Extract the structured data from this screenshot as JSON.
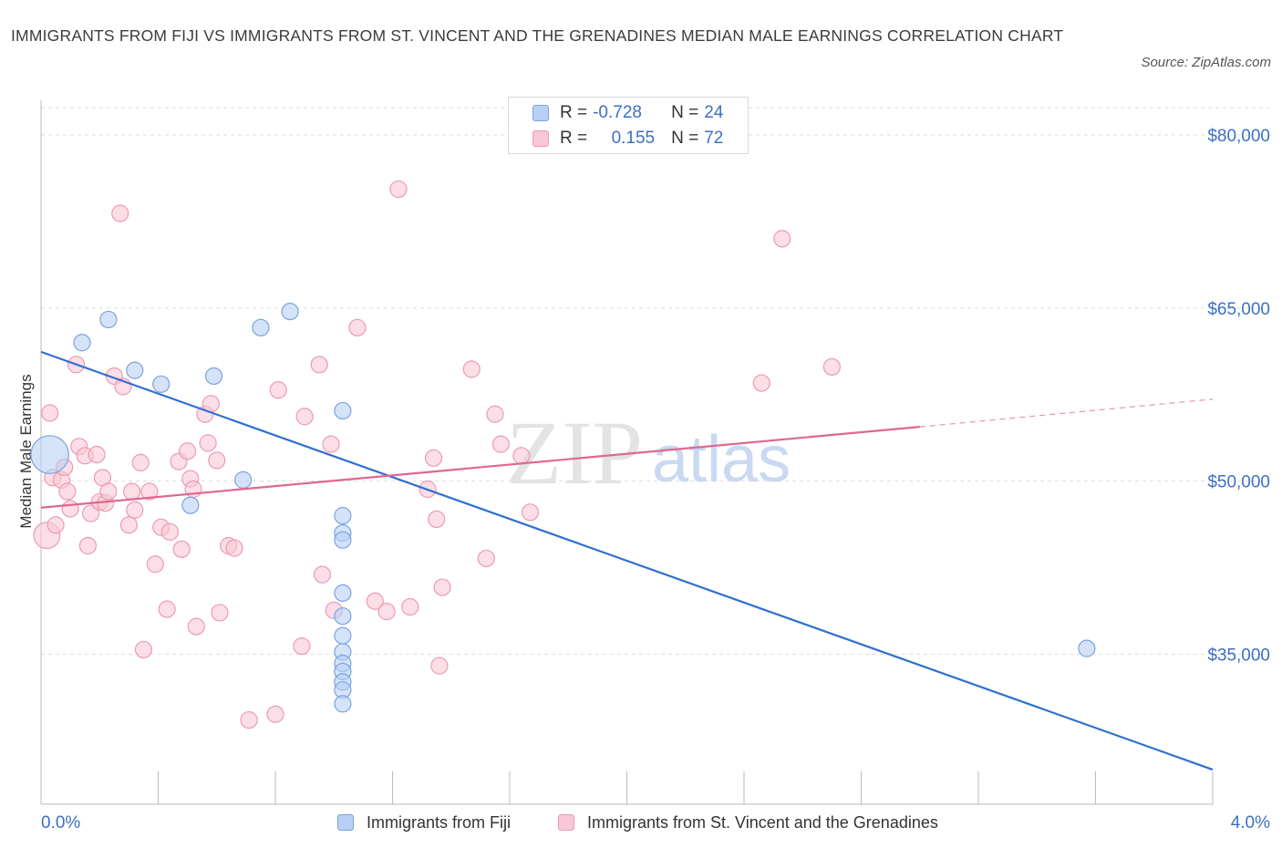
{
  "header": {
    "title": "IMMIGRANTS FROM FIJI VS IMMIGRANTS FROM ST. VINCENT AND THE GRENADINES MEDIAN MALE EARNINGS CORRELATION CHART",
    "source": "Source: ZipAtlas.com"
  },
  "watermark": {
    "zip": "ZIP",
    "atlas": "atlas"
  },
  "stats_legend": {
    "rows": [
      {
        "r_label": "R =",
        "r_value": "-0.728",
        "n_label": "N =",
        "n_value": "24"
      },
      {
        "r_label": "R =",
        "r_value": "0.155",
        "n_label": "N =",
        "n_value": "72"
      }
    ]
  },
  "colors": {
    "fiji_fill": "#b8d0f4",
    "fiji_stroke": "#7aa3e0",
    "fiji_line": "#2f6fd0",
    "svg_fill": "#f8c8d6",
    "svg_stroke": "#ec9bb4",
    "svg_line": "#e0678f",
    "axis_text": "#3d6fc4",
    "grid": "#dddddd"
  },
  "chart_data": {
    "type": "scatter",
    "title": "IMMIGRANTS FROM FIJI VS IMMIGRANTS FROM ST. VINCENT AND THE GRENADINES MEDIAN MALE EARNINGS CORRELATION CHART",
    "xlabel": "",
    "ylabel": "Median Male Earnings",
    "xlim": [
      0,
      4.0
    ],
    "ylim": [
      22000,
      83000
    ],
    "x_tick_labels": [
      "0.0%",
      "4.0%"
    ],
    "y_ticks": [
      35000,
      50000,
      65000,
      80000
    ],
    "y_tick_labels": [
      "$35,000",
      "$50,000",
      "$65,000",
      "$80,000"
    ],
    "grid": true,
    "legend_position": "bottom",
    "series": [
      {
        "name": "Immigrants from Fiji",
        "points": [
          [
            0.03,
            52300,
            2.3
          ],
          [
            0.14,
            62000,
            1
          ],
          [
            0.23,
            64000,
            1
          ],
          [
            0.32,
            59600,
            1
          ],
          [
            0.41,
            58400,
            1
          ],
          [
            0.51,
            47900,
            1
          ],
          [
            0.59,
            59100,
            1
          ],
          [
            0.69,
            50100,
            1
          ],
          [
            0.75,
            63300,
            1
          ],
          [
            0.85,
            64700,
            1
          ],
          [
            1.03,
            56100,
            1
          ],
          [
            1.03,
            47000,
            1
          ],
          [
            1.03,
            45500,
            1
          ],
          [
            1.03,
            44900,
            1
          ],
          [
            1.03,
            40300,
            1
          ],
          [
            1.03,
            38300,
            1
          ],
          [
            1.03,
            36600,
            1
          ],
          [
            1.03,
            35200,
            1
          ],
          [
            1.03,
            34200,
            1
          ],
          [
            1.03,
            33500,
            1
          ],
          [
            1.03,
            32600,
            1
          ],
          [
            1.03,
            31900,
            1
          ],
          [
            1.03,
            30700,
            1
          ],
          [
            3.57,
            35500,
            1
          ]
        ],
        "trend": {
          "x": [
            0.0,
            4.0
          ],
          "y": [
            61200,
            25000
          ]
        }
      },
      {
        "name": "Immigrants from St. Vincent and the Grenadines",
        "points": [
          [
            0.02,
            45300,
            1.6
          ],
          [
            0.03,
            55900,
            1
          ],
          [
            0.04,
            50300,
            1
          ],
          [
            0.05,
            46200,
            1
          ],
          [
            0.07,
            50100,
            1
          ],
          [
            0.08,
            51200,
            1
          ],
          [
            0.09,
            49100,
            1
          ],
          [
            0.1,
            47600,
            1
          ],
          [
            0.12,
            60100,
            1
          ],
          [
            0.13,
            53000,
            1
          ],
          [
            0.15,
            52200,
            1
          ],
          [
            0.16,
            44400,
            1
          ],
          [
            0.17,
            47200,
            1
          ],
          [
            0.19,
            52300,
            1
          ],
          [
            0.2,
            48200,
            1
          ],
          [
            0.21,
            50300,
            1
          ],
          [
            0.22,
            48100,
            1
          ],
          [
            0.23,
            49100,
            1
          ],
          [
            0.25,
            59100,
            1
          ],
          [
            0.27,
            73200,
            1
          ],
          [
            0.28,
            58200,
            1
          ],
          [
            0.3,
            46200,
            1
          ],
          [
            0.31,
            49100,
            1
          ],
          [
            0.32,
            47500,
            1
          ],
          [
            0.34,
            51600,
            1
          ],
          [
            0.35,
            35400,
            1
          ],
          [
            0.37,
            49100,
            1
          ],
          [
            0.39,
            42800,
            1
          ],
          [
            0.41,
            46000,
            1
          ],
          [
            0.43,
            38900,
            1
          ],
          [
            0.44,
            45600,
            1
          ],
          [
            0.47,
            51700,
            1
          ],
          [
            0.48,
            44100,
            1
          ],
          [
            0.5,
            52600,
            1
          ],
          [
            0.51,
            50200,
            1
          ],
          [
            0.52,
            49300,
            1
          ],
          [
            0.53,
            37400,
            1
          ],
          [
            0.56,
            55800,
            1
          ],
          [
            0.57,
            53300,
            1
          ],
          [
            0.58,
            56700,
            1
          ],
          [
            0.6,
            51800,
            1
          ],
          [
            0.61,
            38600,
            1
          ],
          [
            0.64,
            44400,
            1
          ],
          [
            0.66,
            44200,
            1
          ],
          [
            0.71,
            29300,
            1
          ],
          [
            0.8,
            29800,
            1
          ],
          [
            0.81,
            57900,
            1
          ],
          [
            0.89,
            35700,
            1
          ],
          [
            0.9,
            55600,
            1
          ],
          [
            0.95,
            60100,
            1
          ],
          [
            0.96,
            41900,
            1
          ],
          [
            0.99,
            53200,
            1
          ],
          [
            1.0,
            38800,
            1
          ],
          [
            1.08,
            63300,
            1
          ],
          [
            1.14,
            39600,
            1
          ],
          [
            1.18,
            38700,
            1
          ],
          [
            1.22,
            75300,
            1
          ],
          [
            1.26,
            39100,
            1
          ],
          [
            1.32,
            49300,
            1
          ],
          [
            1.34,
            52000,
            1
          ],
          [
            1.35,
            46700,
            1
          ],
          [
            1.36,
            34000,
            1
          ],
          [
            1.37,
            40800,
            1
          ],
          [
            1.47,
            59700,
            1
          ],
          [
            1.52,
            43300,
            1
          ],
          [
            1.55,
            55800,
            1
          ],
          [
            1.57,
            53200,
            1
          ],
          [
            1.64,
            52200,
            1
          ],
          [
            1.67,
            47300,
            1
          ],
          [
            2.46,
            58500,
            1
          ],
          [
            2.53,
            71000,
            1
          ],
          [
            2.7,
            59900,
            1
          ]
        ],
        "trend": {
          "x": [
            0.0,
            3.0
          ],
          "y": [
            47700,
            54700
          ],
          "dashed_extension": {
            "x": [
              3.0,
              4.0
            ],
            "y": [
              54700,
              57100
            ]
          }
        }
      }
    ]
  }
}
